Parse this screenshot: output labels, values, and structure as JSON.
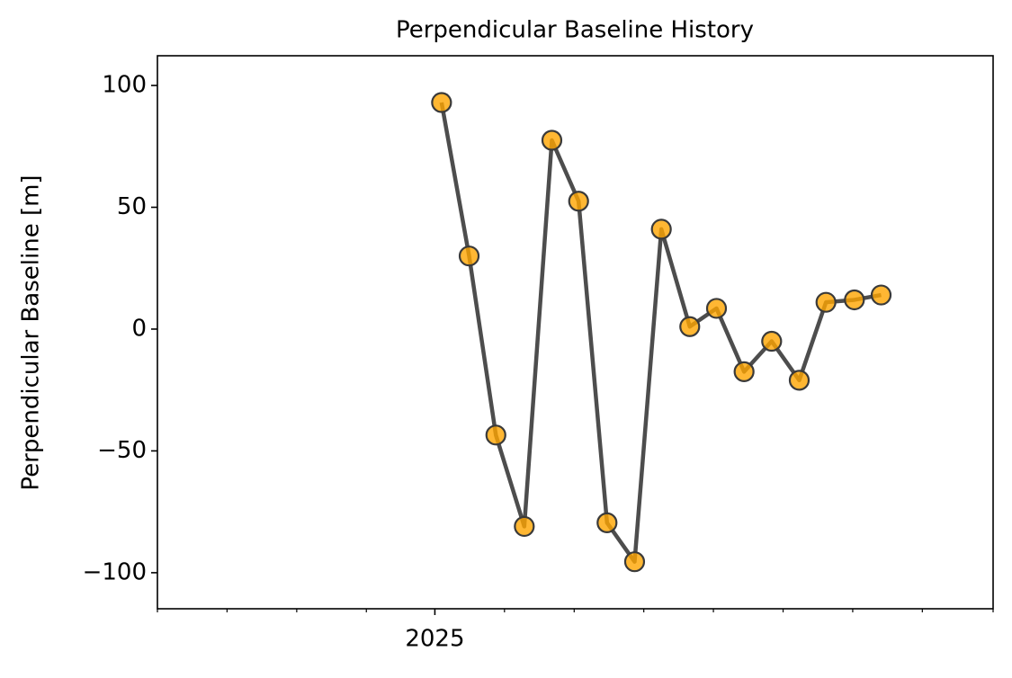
{
  "chart_data": {
    "type": "line",
    "title": "Perpendicular Baseline History",
    "y_label": "Perpendicular Baseline [m]",
    "x": [
      2025.008,
      2025.041,
      2025.073,
      2025.107,
      2025.14,
      2025.172,
      2025.206,
      2025.239,
      2025.271,
      2025.305,
      2025.337,
      2025.37,
      2025.403,
      2025.436,
      2025.468,
      2025.502,
      2025.534
    ],
    "series": [
      {
        "color": "#ffa500",
        "line_color": "#3a3a3a",
        "values": [
          93,
          30,
          -43.5,
          -81,
          77.5,
          52.5,
          -79.5,
          -95.5,
          41,
          1,
          8.5,
          -17.5,
          -5,
          -21,
          11,
          12,
          14
        ]
      }
    ],
    "xlim": [
      2024.668,
      2025.668
    ],
    "xticks": [
      {
        "value": 2025,
        "label": "2025"
      }
    ],
    "xminorticks": [
      2024.668,
      2024.7513,
      2024.8347,
      2024.918,
      2025.0833,
      2025.1667,
      2025.25,
      2025.3333,
      2025.4167,
      2025.5,
      2025.5833,
      2025.668
    ],
    "ylim": [
      -114.8,
      112.2
    ],
    "yticks": [
      {
        "value": -100,
        "label": "−100"
      },
      {
        "value": -50,
        "label": "−50"
      },
      0,
      50,
      100
    ]
  }
}
